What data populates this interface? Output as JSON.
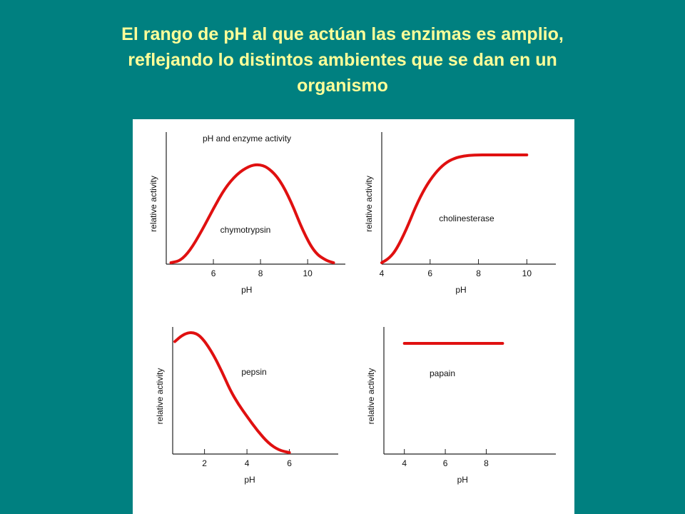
{
  "slide": {
    "title_line1": "El rango de pH al que actúan las enzimas es amplio,",
    "title_line2": "reflejando lo distintos ambientes que se dan en un",
    "title_line3": "organismo"
  },
  "colors": {
    "background": "#008080",
    "title": "#FFFF99",
    "curve": "#e01010",
    "axis": "#222222"
  },
  "chart_data": [
    {
      "type": "line",
      "title": "pH and enzyme activity",
      "series_label": "chymotrypsin",
      "xlabel": "pH",
      "ylabel": "relative activity",
      "xlim": [
        4,
        11.6
      ],
      "ylim": [
        0,
        1
      ],
      "xticks": [
        6,
        8,
        10
      ],
      "x": [
        4.2,
        4.6,
        5.0,
        5.5,
        6.0,
        6.5,
        7.0,
        7.5,
        7.9,
        8.3,
        8.8,
        9.3,
        9.8,
        10.3,
        10.8,
        11.1
      ],
      "y": [
        0.0,
        0.02,
        0.12,
        0.32,
        0.55,
        0.76,
        0.9,
        0.98,
        1.0,
        0.97,
        0.85,
        0.62,
        0.32,
        0.1,
        0.02,
        0.0
      ]
    },
    {
      "type": "line",
      "title": "",
      "series_label": "cholinesterase",
      "xlabel": "pH",
      "ylabel": "relative activity",
      "xlim": [
        4,
        11.2
      ],
      "ylim": [
        0,
        1
      ],
      "xticks": [
        4,
        6,
        8,
        10
      ],
      "x": [
        4.0,
        4.3,
        4.6,
        5.0,
        5.4,
        5.8,
        6.2,
        6.6,
        7.0,
        7.4,
        7.8,
        8.5,
        10.0
      ],
      "y": [
        0.0,
        0.04,
        0.12,
        0.3,
        0.52,
        0.7,
        0.83,
        0.92,
        0.97,
        0.99,
        1.0,
        1.0,
        1.0
      ]
    },
    {
      "type": "line",
      "title": "",
      "series_label": "pepsin",
      "xlabel": "pH",
      "ylabel": "relative activity",
      "xlim": [
        0.5,
        8.3
      ],
      "ylim": [
        0,
        1
      ],
      "xticks": [
        2,
        4,
        6
      ],
      "x": [
        0.6,
        1.0,
        1.4,
        1.8,
        2.3,
        2.8,
        3.2,
        3.6,
        4.0,
        4.5,
        5.0,
        5.5,
        6.0
      ],
      "y": [
        0.92,
        0.98,
        1.0,
        0.97,
        0.85,
        0.68,
        0.52,
        0.4,
        0.3,
        0.18,
        0.08,
        0.02,
        0.0
      ]
    },
    {
      "type": "line",
      "title": "",
      "series_label": "papain",
      "xlabel": "pH",
      "ylabel": "relative activity",
      "xlim": [
        3,
        11.4
      ],
      "ylim": [
        0,
        1
      ],
      "xticks": [
        4,
        6,
        8
      ],
      "x": [
        4.0,
        8.8
      ],
      "y": [
        1.0,
        1.0
      ]
    }
  ]
}
